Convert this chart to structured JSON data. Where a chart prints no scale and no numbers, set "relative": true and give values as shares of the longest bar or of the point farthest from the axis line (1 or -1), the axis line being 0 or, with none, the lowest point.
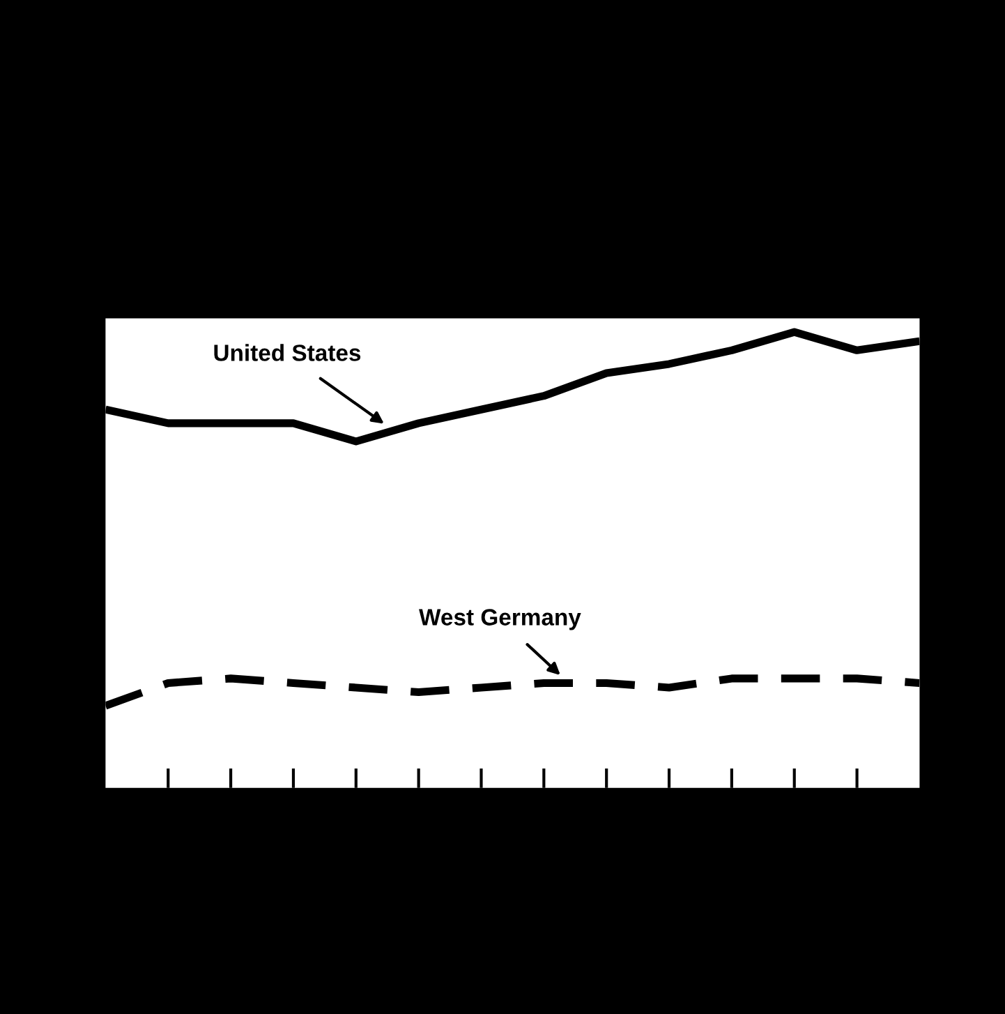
{
  "chart_data": {
    "type": "line",
    "relative": true,
    "legend": false,
    "grid": false,
    "marker": "none",
    "categories": [
      null,
      null,
      null,
      null,
      null,
      null,
      null,
      null,
      null,
      null,
      null,
      null,
      null,
      null
    ],
    "series": [
      {
        "name": "United States",
        "color": "#000000",
        "line_style": "solid",
        "values": [
          0.83,
          0.8,
          0.8,
          0.8,
          0.76,
          0.8,
          0.83,
          0.86,
          0.91,
          0.93,
          0.96,
          1,
          0.96,
          0.98
        ]
      },
      {
        "name": "West Germany",
        "color": "#000000",
        "line_style": "dashed",
        "values": [
          0.18,
          0.23,
          0.24,
          0.23,
          0.22,
          0.21,
          0.22,
          0.23,
          0.23,
          0.22,
          0.24,
          0.24,
          0.24,
          0.23
        ]
      }
    ]
  }
}
